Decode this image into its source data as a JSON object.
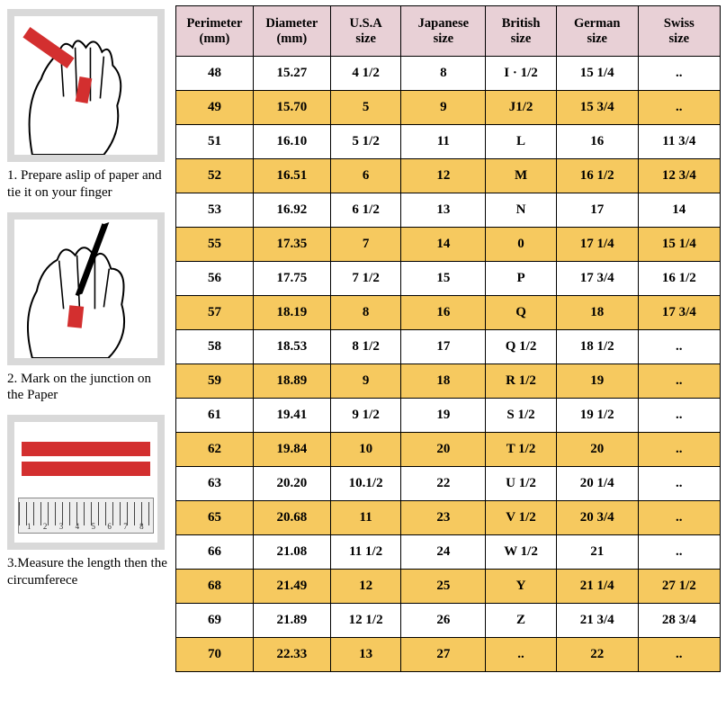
{
  "colors": {
    "header_bg": "#e8d0d6",
    "alt_row_bg": "#f6c95f",
    "border": "#000000",
    "red": "#d32f2f",
    "gray_frame": "#d9d9d9"
  },
  "captions": {
    "step1": "1.  Prepare aslip of paper and tie it on your finger",
    "step2": "2. Mark on the junction on the Paper",
    "step3": "3.Measure the length then the circumferece"
  },
  "table": {
    "headers": [
      "Perimeter (mm)",
      "Diameter (mm)",
      "U.S.A size",
      "Japanese size",
      "British size",
      "German size",
      "Swiss size"
    ],
    "rows": [
      {
        "alt": false,
        "cells": [
          "48",
          "15.27",
          "4 1/2",
          "8",
          "I · 1/2",
          "15 1/4",
          ".."
        ]
      },
      {
        "alt": true,
        "cells": [
          "49",
          "15.70",
          "5",
          "9",
          "J1/2",
          "15 3/4",
          ".."
        ]
      },
      {
        "alt": false,
        "cells": [
          "51",
          "16.10",
          "5 1/2",
          "11",
          "L",
          "16",
          "11 3/4"
        ]
      },
      {
        "alt": true,
        "cells": [
          "52",
          "16.51",
          "6",
          "12",
          "M",
          "16 1/2",
          "12 3/4"
        ]
      },
      {
        "alt": false,
        "cells": [
          "53",
          "16.92",
          "6 1/2",
          "13",
          "N",
          "17",
          "14"
        ]
      },
      {
        "alt": true,
        "cells": [
          "55",
          "17.35",
          "7",
          "14",
          "0",
          "17 1/4",
          "15 1/4"
        ]
      },
      {
        "alt": false,
        "cells": [
          "56",
          "17.75",
          "7 1/2",
          "15",
          "P",
          "17 3/4",
          "16 1/2"
        ]
      },
      {
        "alt": true,
        "cells": [
          "57",
          "18.19",
          "8",
          "16",
          "Q",
          "18",
          "17 3/4"
        ]
      },
      {
        "alt": false,
        "cells": [
          "58",
          "18.53",
          "8 1/2",
          "17",
          "Q 1/2",
          "18 1/2",
          ".."
        ]
      },
      {
        "alt": true,
        "cells": [
          "59",
          "18.89",
          "9",
          "18",
          "R 1/2",
          "19",
          ".."
        ]
      },
      {
        "alt": false,
        "cells": [
          "61",
          "19.41",
          "9 1/2",
          "19",
          "S 1/2",
          "19 1/2",
          ".."
        ]
      },
      {
        "alt": true,
        "cells": [
          "62",
          "19.84",
          "10",
          "20",
          "T 1/2",
          "20",
          ".."
        ]
      },
      {
        "alt": false,
        "cells": [
          "63",
          "20.20",
          "10.1/2",
          "22",
          "U 1/2",
          "20 1/4",
          ".."
        ]
      },
      {
        "alt": true,
        "cells": [
          "65",
          "20.68",
          "11",
          "23",
          "V 1/2",
          "20 3/4",
          ".."
        ]
      },
      {
        "alt": false,
        "cells": [
          "66",
          "21.08",
          "11 1/2",
          "24",
          "W 1/2",
          "21",
          ".."
        ]
      },
      {
        "alt": true,
        "cells": [
          "68",
          "21.49",
          "12",
          "25",
          "Y",
          "21 1/4",
          "27 1/2"
        ]
      },
      {
        "alt": false,
        "cells": [
          "69",
          "21.89",
          "12 1/2",
          "26",
          "Z",
          "21 3/4",
          "28 3/4"
        ]
      },
      {
        "alt": true,
        "cells": [
          "70",
          "22.33",
          "13",
          "27",
          "..",
          "22",
          ".."
        ]
      }
    ]
  },
  "ruler_marks": [
    "1",
    "2",
    "3",
    "4",
    "5",
    "6",
    "7",
    "8"
  ]
}
